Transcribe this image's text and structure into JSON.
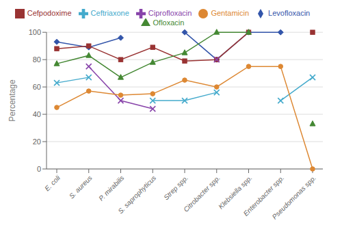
{
  "chart_data": {
    "type": "line",
    "categories": [
      "E. coli",
      "S. aureus",
      "P. mirabilis",
      "S. saprophyticus",
      "Strep spp.",
      "Citrobacter spp.",
      "Klebsiella spp.",
      "Enterobacter spp.",
      "Pseudomonas spp."
    ],
    "series": [
      {
        "name": "Levofloxacin",
        "color": "#3355AA",
        "marker": "diamond",
        "values": [
          93,
          89,
          96,
          null,
          100,
          80,
          100,
          100,
          null
        ]
      },
      {
        "name": "Cefpodoxime",
        "color": "#993333",
        "marker": "square",
        "values": [
          88,
          90,
          80,
          89,
          79,
          80,
          100,
          null,
          100
        ]
      },
      {
        "name": "Ofloxacin",
        "color": "#448833",
        "marker": "triangle",
        "values": [
          77,
          83,
          67,
          78,
          85,
          100,
          100,
          null,
          33
        ]
      },
      {
        "name": "Ciprofloxacin",
        "color": "#8844AA",
        "marker": "x",
        "values": [
          null,
          75,
          50,
          44,
          null,
          80,
          null,
          null,
          null
        ]
      },
      {
        "name": "Ceftriaxone",
        "color": "#44AACC",
        "marker": "x",
        "values": [
          63,
          67,
          null,
          50,
          50,
          56,
          null,
          50,
          67
        ]
      },
      {
        "name": "Gentamicin",
        "color": "#DD8833",
        "marker": "circle",
        "values": [
          45,
          57,
          54,
          55,
          65,
          60,
          75,
          75,
          0
        ]
      }
    ],
    "ylabel": "Percentage",
    "ylim": [
      0,
      100
    ],
    "yticks": [
      0,
      20,
      40,
      60,
      80,
      100
    ],
    "grid": true,
    "legend": "top"
  }
}
